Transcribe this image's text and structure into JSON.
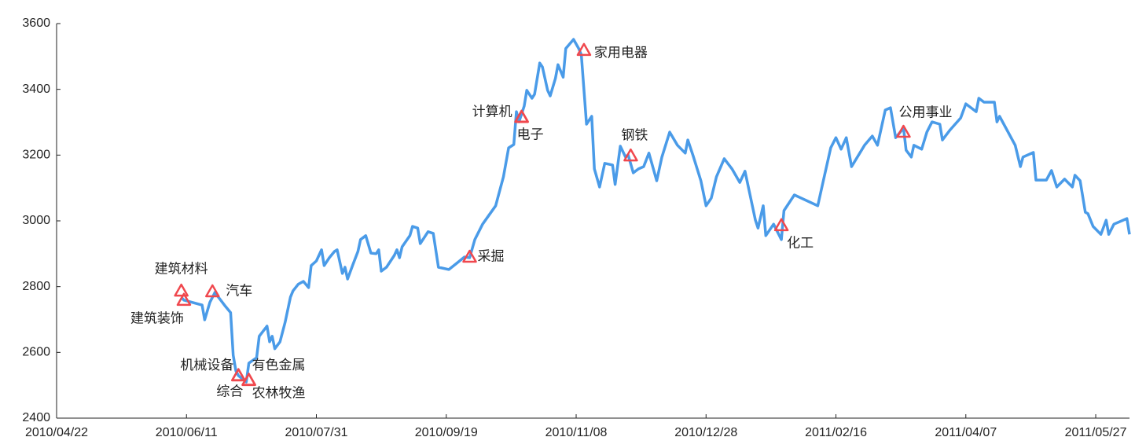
{
  "chart_data": {
    "type": "line",
    "x": [
      "2010/06/09",
      "2010/06/10",
      "2010/06/17",
      "2010/06/18",
      "2010/06/20",
      "2010/06/22",
      "2010/06/23",
      "2010/06/26",
      "2010/06/28",
      "2010/06/29",
      "2010/06/30",
      "2010/07/01",
      "2010/07/04",
      "2010/07/05",
      "2010/07/08",
      "2010/07/09",
      "2010/07/12",
      "2010/07/13",
      "2010/07/14",
      "2010/07/15",
      "2010/07/17",
      "2010/07/19",
      "2010/07/21",
      "2010/07/22",
      "2010/07/24",
      "2010/07/26",
      "2010/07/28",
      "2010/07/29",
      "2010/07/31",
      "2010/08/02",
      "2010/08/03",
      "2010/08/05",
      "2010/08/07",
      "2010/08/08",
      "2010/08/10",
      "2010/08/11",
      "2010/08/12",
      "2010/08/14",
      "2010/08/16",
      "2010/08/17",
      "2010/08/19",
      "2010/08/21",
      "2010/08/23",
      "2010/08/24",
      "2010/08/25",
      "2010/08/27",
      "2010/08/30",
      "2010/08/31",
      "2010/09/01",
      "2010/09/02",
      "2010/09/05",
      "2010/09/06",
      "2010/09/08",
      "2010/09/09",
      "2010/09/12",
      "2010/09/14",
      "2010/09/16",
      "2010/09/20",
      "2010/09/23",
      "2010/09/26",
      "2010/09/28",
      "2010/09/30",
      "2010/10/03",
      "2010/10/08",
      "2010/10/11",
      "2010/10/13",
      "2010/10/15",
      "2010/10/16",
      "2010/10/17",
      "2010/10/19",
      "2010/10/20",
      "2010/10/22",
      "2010/10/23",
      "2010/10/25",
      "2010/10/26",
      "2010/10/28",
      "2010/10/29",
      "2010/10/31",
      "2010/11/01",
      "2010/11/03",
      "2010/11/04",
      "2010/11/07",
      "2010/11/09",
      "2010/11/10",
      "2010/11/12",
      "2010/11/14",
      "2010/11/15",
      "2010/11/17",
      "2010/11/19",
      "2010/11/22",
      "2010/11/23",
      "2010/11/25",
      "2010/11/27",
      "2010/11/28",
      "2010/11/30",
      "2010/12/02",
      "2010/12/04",
      "2010/12/06",
      "2010/12/09",
      "2010/12/11",
      "2010/12/14",
      "2010/12/17",
      "2010/12/20",
      "2010/12/21",
      "2010/12/23",
      "2010/12/26",
      "2010/12/28",
      "2010/12/30",
      "2011/01/01",
      "2011/01/04",
      "2011/01/07",
      "2011/01/10",
      "2011/01/12",
      "2011/01/16",
      "2011/01/17",
      "2011/01/19",
      "2011/01/20",
      "2011/01/23",
      "2011/01/26",
      "2011/01/27",
      "2011/01/31",
      "2011/02/09",
      "2011/02/11",
      "2011/02/14",
      "2011/02/16",
      "2011/02/18",
      "2011/02/20",
      "2011/02/22",
      "2011/02/27",
      "2011/03/02",
      "2011/03/04",
      "2011/03/07",
      "2011/03/09",
      "2011/03/11",
      "2011/03/14",
      "2011/03/15",
      "2011/03/17",
      "2011/03/18",
      "2011/03/21",
      "2011/03/23",
      "2011/03/25",
      "2011/03/28",
      "2011/03/29",
      "2011/04/01",
      "2011/04/05",
      "2011/04/07",
      "2011/04/11",
      "2011/04/12",
      "2011/04/14",
      "2011/04/18",
      "2011/04/19",
      "2011/04/20",
      "2011/04/26",
      "2011/04/28",
      "2011/04/29",
      "2011/05/03",
      "2011/05/04",
      "2011/05/08",
      "2011/05/10",
      "2011/05/12",
      "2011/05/15",
      "2011/05/18",
      "2011/05/19",
      "2011/05/21",
      "2011/05/23",
      "2011/05/24",
      "2011/05/26",
      "2011/05/29",
      "2011/05/31",
      "2011/06/01",
      "2011/06/03",
      "2011/06/08",
      "2011/06/09"
    ],
    "series": [
      {
        "color": "#4a9be8",
        "values": [
          2768,
          2759,
          2744,
          2699,
          2752,
          2783,
          2771,
          2740,
          2721,
          2591,
          2544,
          2529,
          2510,
          2567,
          2584,
          2649,
          2680,
          2632,
          2649,
          2611,
          2632,
          2692,
          2768,
          2787,
          2807,
          2816,
          2797,
          2864,
          2878,
          2912,
          2864,
          2888,
          2907,
          2912,
          2840,
          2859,
          2823,
          2866,
          2907,
          2943,
          2955,
          2902,
          2900,
          2912,
          2847,
          2859,
          2895,
          2912,
          2888,
          2921,
          2955,
          2983,
          2978,
          2931,
          2967,
          2962,
          2859,
          2852,
          2871,
          2890,
          2888,
          2943,
          2990,
          3046,
          3134,
          3222,
          3232,
          3332,
          3301,
          3349,
          3397,
          3373,
          3385,
          3480,
          3468,
          3397,
          3380,
          3433,
          3475,
          3437,
          3524,
          3552,
          3524,
          3505,
          3294,
          3318,
          3158,
          3103,
          3175,
          3170,
          3111,
          3227,
          3194,
          3201,
          3146,
          3158,
          3165,
          3206,
          3122,
          3194,
          3270,
          3230,
          3206,
          3246,
          3199,
          3122,
          3046,
          3069,
          3134,
          3189,
          3158,
          3117,
          3151,
          3002,
          2978,
          3046,
          2955,
          2990,
          2943,
          3031,
          3079,
          3046,
          3117,
          3222,
          3253,
          3218,
          3253,
          3165,
          3230,
          3258,
          3230,
          3337,
          3344,
          3253,
          3282,
          3215,
          3194,
          3230,
          3218,
          3270,
          3301,
          3294,
          3246,
          3277,
          3313,
          3356,
          3332,
          3373,
          3361,
          3361,
          3301,
          3318,
          3230,
          3165,
          3194,
          3208,
          3124,
          3124,
          3153,
          3103,
          3127,
          3103,
          3139,
          3122,
          3026,
          3022,
          2983,
          2959,
          3002,
          2959,
          2990,
          3007,
          2959
        ]
      }
    ],
    "annotations": [
      {
        "text": "建筑材料",
        "x": "2010/06/09",
        "y": 2787
      },
      {
        "text": "建筑装饰",
        "x": "2010/06/10",
        "y": 2759
      },
      {
        "text": "汽车",
        "x": "2010/06/21",
        "y": 2785
      },
      {
        "text": "机械设备",
        "x": "2010/07/01",
        "y": 2530
      },
      {
        "text": "综合",
        "x": "2010/07/01",
        "y": 2529
      },
      {
        "text": "有色金属",
        "x": "2010/07/05",
        "y": 2516
      },
      {
        "text": "农林牧渔",
        "x": "2010/07/05",
        "y": 2515
      },
      {
        "text": "采掘",
        "x": "2010/09/28",
        "y": 2890
      },
      {
        "text": "计算机",
        "x": "2010/10/18",
        "y": 3316
      },
      {
        "text": "电子",
        "x": "2010/10/18",
        "y": 3315
      },
      {
        "text": "家用电器",
        "x": "2010/11/11",
        "y": 3519
      },
      {
        "text": "钢铁",
        "x": "2010/11/29",
        "y": 3198
      },
      {
        "text": "化工",
        "x": "2011/01/26",
        "y": 2986
      },
      {
        "text": "公用事业",
        "x": "2011/03/14",
        "y": 3270
      }
    ],
    "annotation_color": "#f0484e",
    "xlim": [
      "2010/04/22",
      "2011/06/09"
    ],
    "xticks": [
      "2010/04/22",
      "2010/06/11",
      "2010/07/31",
      "2010/09/19",
      "2010/11/08",
      "2010/12/28",
      "2011/02/16",
      "2011/04/07",
      "2011/05/27"
    ],
    "ylim": [
      2400,
      3600
    ],
    "yticks": [
      2400,
      2600,
      2800,
      3000,
      3200,
      3400,
      3600
    ],
    "grid": false
  }
}
